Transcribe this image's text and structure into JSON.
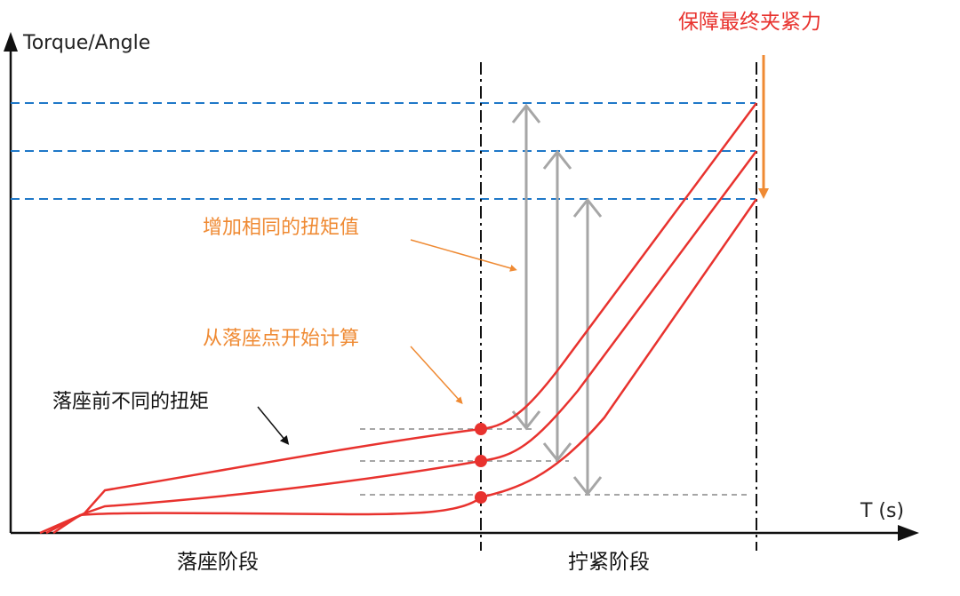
{
  "axes": {
    "y_label": "Torque/Angle",
    "x_label": "T (s)"
  },
  "annotations": {
    "clamp_force": "保障最终夹紧力",
    "same_torque_increase": "增加相同的扭矩值",
    "count_from_seat_point": "从落座点开始计算",
    "different_torque_before_seat": "落座前不同的扭矩"
  },
  "phases": {
    "seating": "落座阶段",
    "tightening": "拧紧阶段"
  },
  "colors": {
    "curve": "#e8322e",
    "dashed_target": "#1f78c8",
    "dashed_seat": "#a6a6a6",
    "arrow_gray": "#a6a6a6",
    "annotation_orange": "#ef8a33",
    "phase_divider": "#111111"
  }
}
